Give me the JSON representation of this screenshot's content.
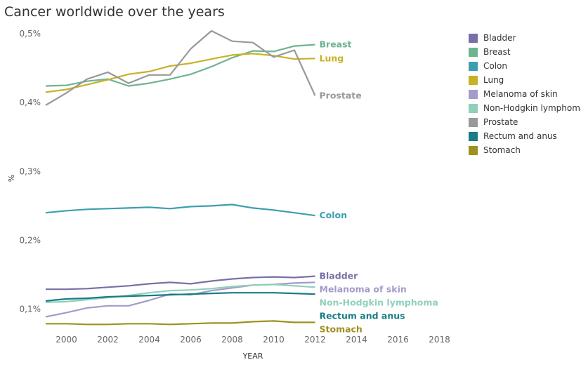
{
  "title": "Cancer worldwide over the years",
  "chart_data": {
    "type": "line",
    "title": "Cancer worldwide over the years",
    "xlabel": "YEAR",
    "ylabel": "%",
    "xlim": [
      1999,
      2019
    ],
    "ylim": [
      0.06,
      0.505
    ],
    "xticks": [
      2000,
      2002,
      2004,
      2006,
      2008,
      2010,
      2012,
      2014,
      2016,
      2018
    ],
    "xtick_labels": [
      "2000",
      "2002",
      "2004",
      "2006",
      "2008",
      "2010",
      "2012",
      "2014",
      "2016",
      "2018"
    ],
    "yticks": [
      0.1,
      0.2,
      0.3,
      0.4,
      0.5
    ],
    "ytick_labels": [
      "0,1%",
      "0,2%",
      "0,3%",
      "0,4%",
      "0,5%"
    ],
    "grid": false,
    "legend": "right",
    "x": [
      1999,
      2000,
      2001,
      2002,
      2003,
      2004,
      2005,
      2006,
      2007,
      2008,
      2009,
      2010,
      2011,
      2012
    ],
    "series": [
      {
        "name": "Bladder",
        "color": "#7b6fa8",
        "label_offset": 0,
        "values": [
          0.129,
          0.129,
          0.13,
          0.132,
          0.134,
          0.137,
          0.139,
          0.137,
          0.141,
          0.144,
          0.146,
          0.147,
          0.146,
          0.148
        ]
      },
      {
        "name": "Breast",
        "color": "#6db58f",
        "label_offset": 0,
        "values": [
          0.424,
          0.425,
          0.431,
          0.434,
          0.424,
          0.428,
          0.434,
          0.441,
          0.452,
          0.465,
          0.475,
          0.474,
          0.482,
          0.484
        ]
      },
      {
        "name": "Colon",
        "color": "#3c9fad",
        "label_offset": 0,
        "values": [
          0.24,
          0.243,
          0.245,
          0.246,
          0.247,
          0.248,
          0.246,
          0.249,
          0.25,
          0.252,
          0.247,
          0.244,
          0.24,
          0.236
        ]
      },
      {
        "name": "Lung",
        "color": "#c9b127",
        "label_offset": 0,
        "values": [
          0.415,
          0.419,
          0.426,
          0.433,
          0.441,
          0.445,
          0.453,
          0.457,
          0.463,
          0.469,
          0.471,
          0.468,
          0.463,
          0.464
        ]
      },
      {
        "name": "Melanoma of skin",
        "color": "#a39cca",
        "label_offset": 0,
        "values": [
          0.089,
          0.095,
          0.102,
          0.105,
          0.105,
          0.113,
          0.122,
          0.121,
          0.127,
          0.131,
          0.135,
          0.136,
          0.138,
          0.139
        ]
      },
      {
        "name": "Non-Hodgkin lymphoma",
        "color": "#8fd0ba",
        "label_offset": 0,
        "values": [
          0.11,
          0.111,
          0.114,
          0.117,
          0.12,
          0.124,
          0.127,
          0.128,
          0.13,
          0.133,
          0.135,
          0.136,
          0.134,
          0.132
        ]
      },
      {
        "name": "Prostate",
        "color": "#999999",
        "label_offset": 0,
        "values": [
          0.396,
          0.414,
          0.434,
          0.444,
          0.428,
          0.44,
          0.44,
          0.478,
          0.504,
          0.489,
          0.487,
          0.466,
          0.476,
          0.41
        ]
      },
      {
        "name": "Rectum and anus",
        "color": "#1a7c86",
        "label_offset": 0,
        "values": [
          0.112,
          0.115,
          0.116,
          0.118,
          0.119,
          0.12,
          0.121,
          0.122,
          0.123,
          0.124,
          0.124,
          0.124,
          0.123,
          0.122
        ]
      },
      {
        "name": "Stomach",
        "color": "#9e921f",
        "label_offset": 0,
        "values": [
          0.079,
          0.079,
          0.078,
          0.078,
          0.079,
          0.079,
          0.078,
          0.079,
          0.08,
          0.08,
          0.082,
          0.083,
          0.081,
          0.081
        ]
      }
    ]
  }
}
